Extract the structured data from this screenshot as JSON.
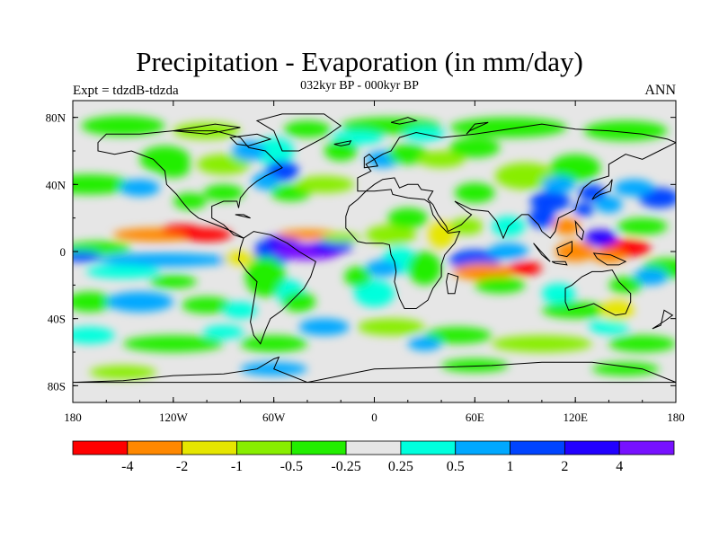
{
  "title": "Precipitation - Evaporation (in mm/day)",
  "subtitle": "032kyr BP - 000kyr BP",
  "left_label": "Expt = tdzdB-tdzda",
  "right_label": "ANN",
  "map": {
    "lon_range": [
      -180,
      180
    ],
    "lat_range": [
      -90,
      90
    ],
    "lon_ticks": [
      {
        "value": -180,
        "label": "180"
      },
      {
        "value": -120,
        "label": "120W"
      },
      {
        "value": -60,
        "label": "60W"
      },
      {
        "value": 0,
        "label": "0"
      },
      {
        "value": 60,
        "label": "60E"
      },
      {
        "value": 120,
        "label": "120E"
      },
      {
        "value": 180,
        "label": "180"
      }
    ],
    "lat_ticks": [
      {
        "value": 80,
        "label": "80N"
      },
      {
        "value": 40,
        "label": "40N"
      },
      {
        "value": 0,
        "label": "0"
      },
      {
        "value": -40,
        "label": "40S"
      },
      {
        "value": -80,
        "label": "80S"
      }
    ],
    "background_color": "#e6e6e6",
    "coast_color": "#000000"
  },
  "colorbar": {
    "colors": [
      "#ff0000",
      "#ff8800",
      "#e6e600",
      "#88ee00",
      "#22ee00",
      "#e6e6e6",
      "#00ffdd",
      "#00a8ff",
      "#0044ff",
      "#2200ff",
      "#7711ff"
    ],
    "labels": [
      "-4",
      "-2",
      "-1",
      "-0.5",
      "-0.25",
      "0.25",
      "0.5",
      "1",
      "2",
      "4"
    ]
  }
}
